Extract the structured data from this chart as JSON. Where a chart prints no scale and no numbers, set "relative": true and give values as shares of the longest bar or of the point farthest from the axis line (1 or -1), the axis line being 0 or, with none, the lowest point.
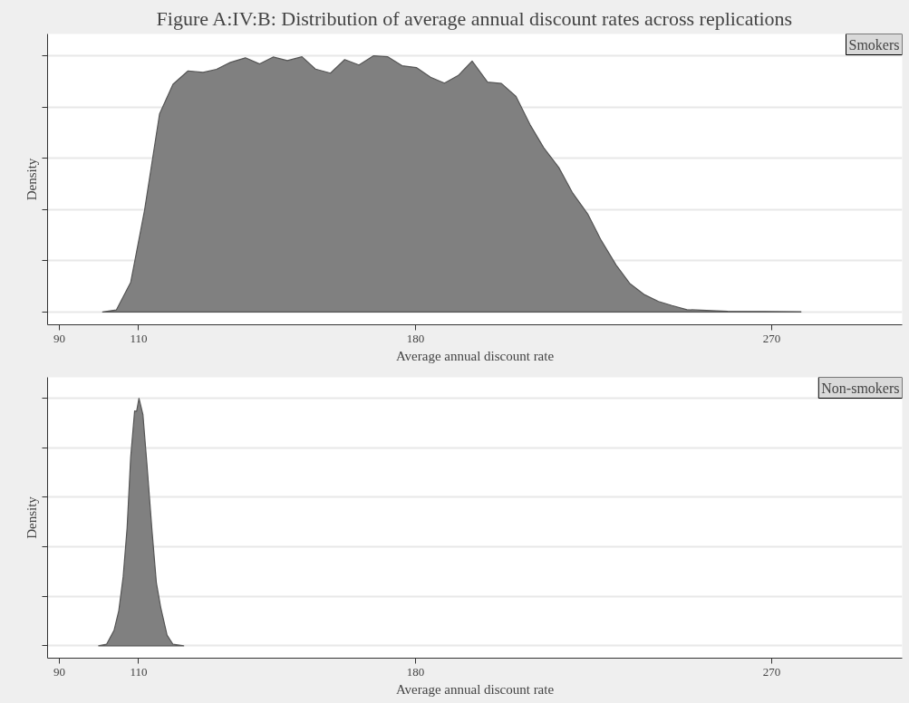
{
  "chart_data": [
    {
      "type": "area",
      "title": "Figure A:IV:B: Distribution of average annual discount rates across replications",
      "relative": true,
      "grid": "y",
      "xlabel": "Average annual discount rate",
      "ylabel": "Density",
      "xlim": [
        87,
        303
      ],
      "xticks": [
        90,
        110,
        180,
        270
      ],
      "x": [
        100.9,
        104.4,
        108.0,
        111.5,
        115.3,
        118.7,
        122.5,
        126.3,
        129.7,
        133.2,
        137.0,
        140.6,
        144.0,
        147.6,
        151.3,
        154.7,
        158.5,
        162.1,
        165.7,
        169.4,
        173.0,
        176.6,
        180.2,
        183.8,
        187.3,
        190.8,
        194.3,
        198.2,
        201.7,
        205.4,
        208.9,
        212.4,
        216.2,
        219.6,
        223.5,
        226.9,
        230.7,
        234.1,
        237.9,
        241.4,
        244.8,
        248.6,
        253.5,
        258.9,
        277.4
      ],
      "series": [
        {
          "name": "Smokers",
          "color": "#808080",
          "values": [
            0,
            0.008,
            0.115,
            0.396,
            0.773,
            0.889,
            0.941,
            0.935,
            0.947,
            0.974,
            0.992,
            0.968,
            0.995,
            0.981,
            0.996,
            0.948,
            0.932,
            0.985,
            0.964,
            1.0,
            0.996,
            0.961,
            0.954,
            0.916,
            0.893,
            0.923,
            0.979,
            0.897,
            0.892,
            0.841,
            0.732,
            0.641,
            0.564,
            0.467,
            0.383,
            0.28,
            0.183,
            0.112,
            0.067,
            0.041,
            0.025,
            0.009,
            0.006,
            0.003,
            0.001
          ]
        }
      ]
    },
    {
      "type": "area",
      "relative": true,
      "grid": "y",
      "xlabel": "Average annual discount rate",
      "ylabel": "Density",
      "xlim": [
        87,
        303
      ],
      "xticks": [
        90,
        110,
        180,
        270
      ],
      "x": [
        99.9,
        101.9,
        103.8,
        105.0,
        106.1,
        107.1,
        108.0,
        109.0,
        109.5,
        110.1,
        111.1,
        112.1,
        113.4,
        114.5,
        115.6,
        117.2,
        118.7,
        121.4
      ],
      "series": [
        {
          "name": "Non-smokers",
          "color": "#808080",
          "values": [
            0,
            0.006,
            0.062,
            0.142,
            0.278,
            0.476,
            0.761,
            0.949,
            0.947,
            1.0,
            0.934,
            0.736,
            0.464,
            0.254,
            0.155,
            0.043,
            0.006,
            0
          ]
        }
      ]
    }
  ]
}
